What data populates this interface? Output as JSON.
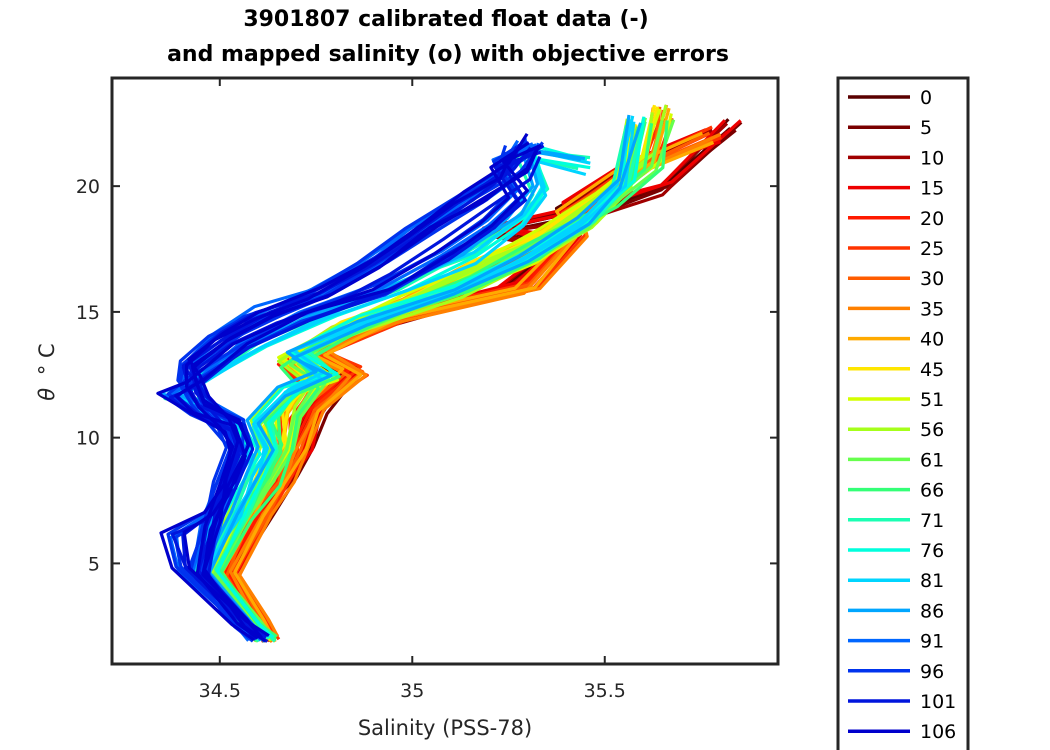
{
  "chart_data": {
    "type": "line",
    "title_line1": "3901807 calibrated float data (-)",
    "title_line2": "and mapped salinity (o) with objective errors",
    "xlabel": "Salinity (PSS-78)",
    "ylabel_symbol": "θ",
    "ylabel_unit": "° C",
    "xlim": [
      34.22,
      35.95
    ],
    "ylim": [
      1.0,
      24.3
    ],
    "xticks": [
      {
        "value": 34.5,
        "label": "34.5"
      },
      {
        "value": 35.0,
        "label": "35"
      },
      {
        "value": 35.5,
        "label": "35.5"
      }
    ],
    "yticks": [
      {
        "value": 5,
        "label": "5"
      },
      {
        "value": 10,
        "label": "10"
      },
      {
        "value": 15,
        "label": "15"
      },
      {
        "value": 20,
        "label": "20"
      }
    ],
    "grid": false,
    "legend_position": "outside-right",
    "colormap": "jet",
    "series": [
      {
        "name": "0",
        "color": "#5a0000"
      },
      {
        "name": "5",
        "color": "#7a0000"
      },
      {
        "name": "10",
        "color": "#a00000"
      },
      {
        "name": "15",
        "color": "#ee0000"
      },
      {
        "name": "20",
        "color": "#ff1a00"
      },
      {
        "name": "25",
        "color": "#ff3300"
      },
      {
        "name": "30",
        "color": "#ff5c00"
      },
      {
        "name": "35",
        "color": "#ff8000"
      },
      {
        "name": "40",
        "color": "#ffaa00"
      },
      {
        "name": "45",
        "color": "#ffe600"
      },
      {
        "name": "51",
        "color": "#d4ff00"
      },
      {
        "name": "56",
        "color": "#a6ff1a"
      },
      {
        "name": "61",
        "color": "#66ff4d"
      },
      {
        "name": "66",
        "color": "#33ff77"
      },
      {
        "name": "71",
        "color": "#1affb3"
      },
      {
        "name": "76",
        "color": "#00ffdd"
      },
      {
        "name": "81",
        "color": "#00d5ff"
      },
      {
        "name": "86",
        "color": "#00a6ff"
      },
      {
        "name": "91",
        "color": "#0066ff"
      },
      {
        "name": "96",
        "color": "#0033ee"
      },
      {
        "name": "101",
        "color": "#0015dd"
      },
      {
        "name": "106",
        "color": "#0000cc"
      }
    ],
    "profile_shapes": [
      {
        "group": "early",
        "points": [
          [
            34.63,
            2.0
          ],
          [
            34.6,
            2.6
          ],
          [
            34.52,
            4.5
          ],
          [
            34.62,
            7.0
          ],
          [
            34.68,
            8.3
          ],
          [
            34.72,
            9.5
          ],
          [
            34.76,
            11.0
          ],
          [
            34.83,
            12.5
          ],
          [
            34.72,
            13.2
          ],
          [
            34.9,
            14.5
          ],
          [
            35.22,
            15.8
          ],
          [
            35.38,
            17.8
          ],
          [
            35.2,
            18.3
          ],
          [
            35.45,
            19.0
          ],
          [
            35.65,
            20.0
          ],
          [
            35.83,
            22.5
          ]
        ]
      },
      {
        "group": "early2",
        "points": [
          [
            34.63,
            2.0
          ],
          [
            34.6,
            2.7
          ],
          [
            34.53,
            4.6
          ],
          [
            34.61,
            7.0
          ],
          [
            34.66,
            8.2
          ],
          [
            34.7,
            9.6
          ],
          [
            34.74,
            11.1
          ],
          [
            34.85,
            12.6
          ],
          [
            34.75,
            13.4
          ],
          [
            34.95,
            14.8
          ],
          [
            35.3,
            16.0
          ],
          [
            35.42,
            18.1
          ],
          [
            35.4,
            19.0
          ],
          [
            35.55,
            20.5
          ],
          [
            35.78,
            22.0
          ]
        ]
      },
      {
        "group": "mid",
        "points": [
          [
            34.62,
            2.0
          ],
          [
            34.58,
            2.7
          ],
          [
            34.48,
            4.6
          ],
          [
            34.56,
            6.9
          ],
          [
            34.62,
            8.3
          ],
          [
            34.67,
            9.6
          ],
          [
            34.68,
            11.0
          ],
          [
            34.74,
            12.2
          ],
          [
            34.68,
            13.0
          ],
          [
            34.82,
            14.3
          ],
          [
            35.0,
            15.4
          ],
          [
            35.18,
            16.7
          ],
          [
            35.35,
            18.0
          ],
          [
            35.5,
            19.5
          ],
          [
            35.62,
            21.0
          ],
          [
            35.65,
            22.9
          ]
        ]
      },
      {
        "group": "mid2",
        "points": [
          [
            34.62,
            2.0
          ],
          [
            34.58,
            2.6
          ],
          [
            34.47,
            4.7
          ],
          [
            34.55,
            7.0
          ],
          [
            34.6,
            8.4
          ],
          [
            34.63,
            9.5
          ],
          [
            34.6,
            10.5
          ],
          [
            34.68,
            11.8
          ],
          [
            34.78,
            12.4
          ],
          [
            34.7,
            13.3
          ],
          [
            34.88,
            14.6
          ],
          [
            35.12,
            15.8
          ],
          [
            35.3,
            17.1
          ],
          [
            35.45,
            18.5
          ],
          [
            35.55,
            20.0
          ],
          [
            35.58,
            22.5
          ]
        ]
      },
      {
        "group": "late",
        "points": [
          [
            34.61,
            2.0
          ],
          [
            34.56,
            2.7
          ],
          [
            34.45,
            4.6
          ],
          [
            34.5,
            6.9
          ],
          [
            34.54,
            8.2
          ],
          [
            34.58,
            9.4
          ],
          [
            34.55,
            10.4
          ],
          [
            34.45,
            11.2
          ],
          [
            34.38,
            11.6
          ],
          [
            34.46,
            12.4
          ],
          [
            34.6,
            13.6
          ],
          [
            34.78,
            14.8
          ],
          [
            34.98,
            16.0
          ],
          [
            35.15,
            17.2
          ],
          [
            35.28,
            18.6
          ],
          [
            35.34,
            19.8
          ],
          [
            35.3,
            21.2
          ],
          [
            35.45,
            20.8
          ]
        ]
      },
      {
        "group": "late2",
        "points": [
          [
            34.61,
            2.0
          ],
          [
            34.55,
            2.6
          ],
          [
            34.4,
            4.8
          ],
          [
            34.38,
            6.1
          ],
          [
            34.47,
            6.9
          ],
          [
            34.52,
            8.1
          ],
          [
            34.55,
            9.3
          ],
          [
            34.53,
            10.3
          ],
          [
            34.42,
            11.0
          ],
          [
            34.37,
            11.7
          ],
          [
            34.44,
            12.3
          ],
          [
            34.56,
            13.6
          ],
          [
            34.72,
            14.8
          ],
          [
            34.92,
            15.9
          ],
          [
            35.08,
            17.2
          ],
          [
            35.2,
            18.4
          ],
          [
            35.28,
            19.6
          ],
          [
            35.22,
            20.8
          ],
          [
            35.32,
            21.6
          ]
        ]
      },
      {
        "group": "latest",
        "points": [
          [
            34.6,
            2.0
          ],
          [
            34.56,
            2.7
          ],
          [
            34.45,
            4.5
          ],
          [
            34.48,
            6.3
          ],
          [
            34.52,
            8.0
          ],
          [
            34.56,
            9.6
          ],
          [
            34.54,
            10.6
          ],
          [
            34.46,
            11.3
          ],
          [
            34.43,
            12.0
          ],
          [
            34.42,
            12.7
          ],
          [
            34.52,
            13.8
          ],
          [
            34.64,
            14.8
          ],
          [
            34.78,
            15.6
          ],
          [
            34.92,
            16.8
          ],
          [
            35.05,
            18.2
          ],
          [
            35.17,
            19.3
          ],
          [
            35.28,
            20.5
          ],
          [
            35.32,
            21.5
          ]
        ]
      },
      {
        "group": "latest2",
        "points": [
          [
            34.6,
            2.0
          ],
          [
            34.55,
            2.6
          ],
          [
            34.44,
            4.7
          ],
          [
            34.47,
            6.5
          ],
          [
            34.5,
            8.2
          ],
          [
            34.53,
            9.7
          ],
          [
            34.5,
            10.7
          ],
          [
            34.45,
            11.5
          ],
          [
            34.42,
            12.2
          ],
          [
            34.41,
            13.0
          ],
          [
            34.48,
            14.0
          ],
          [
            34.58,
            14.9
          ],
          [
            34.74,
            15.8
          ],
          [
            34.88,
            17.0
          ],
          [
            35.0,
            18.3
          ],
          [
            35.12,
            19.5
          ],
          [
            35.24,
            20.6
          ],
          [
            35.27,
            21.7
          ]
        ]
      }
    ]
  }
}
